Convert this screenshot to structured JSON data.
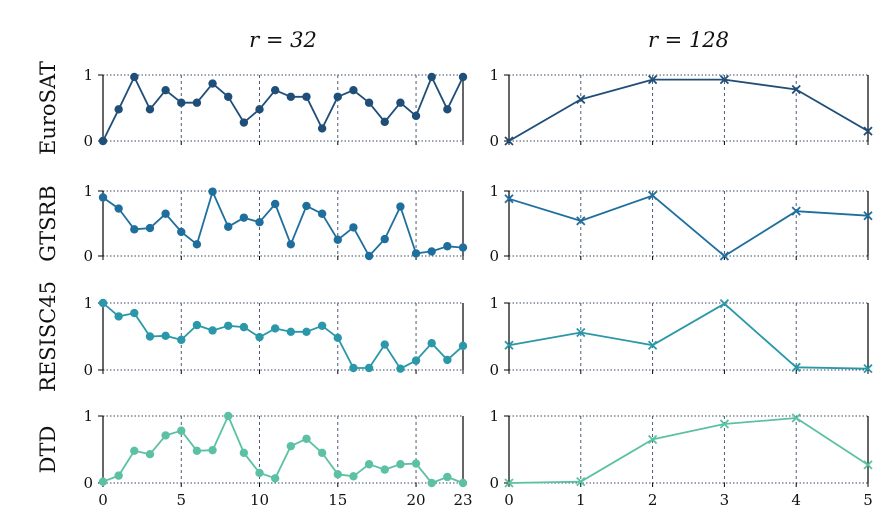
{
  "chart_data": {
    "type": "line",
    "columns": [
      {
        "title": "r = 32",
        "xlim": [
          0,
          23
        ],
        "xticks": [
          0,
          5,
          10,
          15,
          20,
          23
        ],
        "marker": "circle"
      },
      {
        "title": "r = 128",
        "xlim": [
          0,
          5
        ],
        "xticks": [
          0,
          1,
          2,
          3,
          4,
          5
        ],
        "marker": "x"
      }
    ],
    "ylim": [
      0,
      1
    ],
    "yticks": [
      0,
      1
    ],
    "grid": "vertical dashed",
    "panels": [
      {
        "row": "EuroSAT",
        "column": "r = 32",
        "color": "#1f4e79",
        "x": [
          0,
          1,
          2,
          3,
          4,
          5,
          6,
          7,
          8,
          9,
          10,
          11,
          12,
          13,
          14,
          15,
          16,
          17,
          18,
          19,
          20,
          21,
          22,
          23
        ],
        "y": [
          0.0,
          0.48,
          0.97,
          0.48,
          0.77,
          0.58,
          0.58,
          0.87,
          0.67,
          0.28,
          0.48,
          0.77,
          0.67,
          0.67,
          0.19,
          0.67,
          0.77,
          0.58,
          0.29,
          0.58,
          0.38,
          0.97,
          0.48,
          0.97
        ]
      },
      {
        "row": "EuroSAT",
        "column": "r = 128",
        "color": "#1f4e79",
        "x": [
          0,
          1,
          2,
          3,
          4,
          5
        ],
        "y": [
          0.0,
          0.63,
          0.93,
          0.93,
          0.78,
          0.15
        ]
      },
      {
        "row": "GTSRB",
        "column": "r = 32",
        "color": "#1f6f9e",
        "x": [
          0,
          1,
          2,
          3,
          4,
          5,
          6,
          7,
          8,
          9,
          10,
          11,
          12,
          13,
          14,
          15,
          16,
          17,
          18,
          19,
          20,
          21,
          22,
          23
        ],
        "y": [
          0.9,
          0.73,
          0.41,
          0.43,
          0.65,
          0.37,
          0.18,
          0.99,
          0.45,
          0.59,
          0.52,
          0.8,
          0.18,
          0.77,
          0.65,
          0.25,
          0.44,
          0.0,
          0.26,
          0.76,
          0.04,
          0.07,
          0.15,
          0.13
        ]
      },
      {
        "row": "GTSRB",
        "column": "r = 128",
        "color": "#1f6f9e",
        "x": [
          0,
          1,
          2,
          3,
          4,
          5
        ],
        "y": [
          0.88,
          0.54,
          0.93,
          0.0,
          0.69,
          0.62
        ]
      },
      {
        "row": "RESISC45",
        "column": "r = 32",
        "color": "#2a98a8",
        "x": [
          0,
          1,
          2,
          3,
          4,
          5,
          6,
          7,
          8,
          9,
          10,
          11,
          12,
          13,
          14,
          15,
          16,
          17,
          18,
          19,
          20,
          21,
          22,
          23
        ],
        "y": [
          1.0,
          0.8,
          0.85,
          0.5,
          0.51,
          0.45,
          0.67,
          0.59,
          0.66,
          0.64,
          0.49,
          0.62,
          0.57,
          0.57,
          0.66,
          0.48,
          0.03,
          0.03,
          0.38,
          0.02,
          0.14,
          0.4,
          0.15,
          0.36
        ]
      },
      {
        "row": "RESISC45",
        "column": "r = 128",
        "color": "#2a98a8",
        "x": [
          0,
          1,
          2,
          3,
          4,
          5
        ],
        "y": [
          0.37,
          0.56,
          0.37,
          0.99,
          0.04,
          0.02
        ]
      },
      {
        "row": "DTD",
        "column": "r = 32",
        "color": "#5cc1a4",
        "x": [
          0,
          1,
          2,
          3,
          4,
          5,
          6,
          7,
          8,
          9,
          10,
          11,
          12,
          13,
          14,
          15,
          16,
          17,
          18,
          19,
          20,
          21,
          22,
          23
        ],
        "y": [
          0.02,
          0.11,
          0.48,
          0.43,
          0.71,
          0.78,
          0.48,
          0.49,
          1.0,
          0.45,
          0.15,
          0.07,
          0.55,
          0.66,
          0.45,
          0.13,
          0.1,
          0.28,
          0.2,
          0.28,
          0.29,
          0.0,
          0.09,
          0.0
        ]
      },
      {
        "row": "DTD",
        "column": "r = 128",
        "color": "#5cc1a4",
        "x": [
          0,
          1,
          2,
          3,
          4,
          5
        ],
        "y": [
          0.0,
          0.02,
          0.65,
          0.88,
          0.97,
          0.27
        ]
      }
    ]
  }
}
